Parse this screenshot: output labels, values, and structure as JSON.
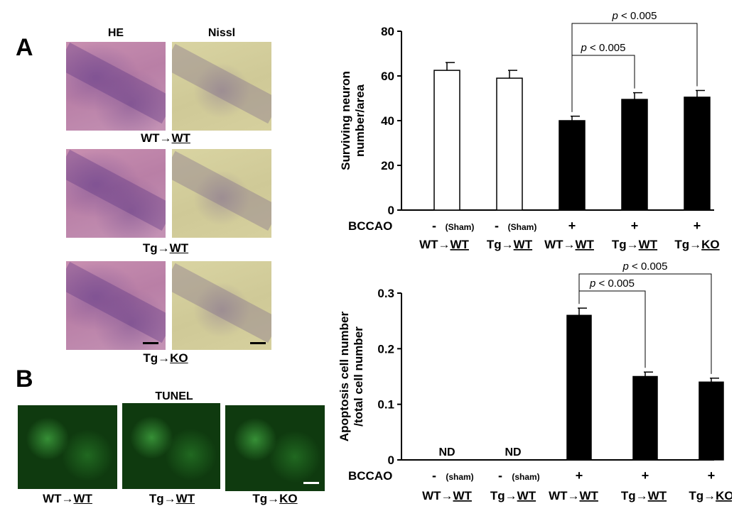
{
  "panel_a": {
    "letter": "A",
    "col_he": "HE",
    "col_nissl": "Nissl",
    "rows": [
      {
        "pre": "WT→",
        "under": "WT"
      },
      {
        "pre": "Tg→",
        "under": "WT"
      },
      {
        "pre": "Tg→",
        "under": "KO"
      }
    ]
  },
  "panel_b": {
    "letter": "B",
    "title": "TUNEL",
    "labels": [
      {
        "pre": "WT→",
        "under": "WT"
      },
      {
        "pre": "Tg→",
        "under": "WT"
      },
      {
        "pre": "Tg→",
        "under": "KO"
      }
    ]
  },
  "chart_data": [
    {
      "type": "bar",
      "ylabel_line1": "Surviving neuron",
      "ylabel_line2": "number/area",
      "ylim": [
        0,
        80
      ],
      "yticks": [
        "0",
        "20",
        "40",
        "60",
        "80"
      ],
      "categories": [
        "WT→WT",
        "Tg→WT",
        "WT→WT",
        "Tg→WT",
        "Tg→KO"
      ],
      "values": [
        62.5,
        59,
        40,
        49.5,
        50.5
      ],
      "errors": [
        3.5,
        3.5,
        2,
        3,
        3
      ],
      "fills": [
        "white",
        "white",
        "black",
        "black",
        "black"
      ],
      "bccao_label": "BCCAO",
      "bccao": [
        "-",
        "-",
        "+",
        "+",
        "+"
      ],
      "sham": [
        "(Sham)",
        "(Sham)",
        "",
        "",
        ""
      ],
      "labels": [
        {
          "pre": "WT→",
          "under": "WT"
        },
        {
          "pre": "Tg→",
          "under": "WT"
        },
        {
          "pre": "WT→",
          "under": "WT"
        },
        {
          "pre": "Tg→",
          "under": "WT"
        },
        {
          "pre": "Tg→",
          "under": "KO"
        }
      ],
      "sig": [
        {
          "from": 2,
          "to": 3,
          "p_italic": "p",
          "text": " < 0.005"
        },
        {
          "from": 2,
          "to": 4,
          "p_italic": "p",
          "text": " < 0.005"
        }
      ]
    },
    {
      "type": "bar",
      "ylabel_line1": "Apoptosis cell number",
      "ylabel_line2": "/total cell number",
      "ylim": [
        0,
        0.3
      ],
      "yticks": [
        "0",
        "0.1",
        "0.2",
        "0.3"
      ],
      "categories": [
        "WT→WT",
        "Tg→WT",
        "WT→WT",
        "Tg→WT",
        "Tg→KO"
      ],
      "values": [
        null,
        null,
        0.26,
        0.15,
        0.14
      ],
      "errors": [
        0,
        0,
        0.013,
        0.008,
        0.007
      ],
      "nd": [
        "ND",
        "ND",
        "",
        "",
        ""
      ],
      "bccao_label": "BCCAO",
      "bccao": [
        "-",
        "-",
        "+",
        "+",
        "+"
      ],
      "sham": [
        "(sham)",
        "(sham)",
        "",
        "",
        ""
      ],
      "labels": [
        {
          "pre": "WT→",
          "under": "WT"
        },
        {
          "pre": "Tg→",
          "under": "WT"
        },
        {
          "pre": "WT→",
          "under": "WT"
        },
        {
          "pre": "Tg→",
          "under": "WT"
        },
        {
          "pre": "Tg→",
          "under": "KO"
        }
      ],
      "sig": [
        {
          "from": 2,
          "to": 3,
          "p_italic": "p",
          "text": " < 0.005"
        },
        {
          "from": 2,
          "to": 4,
          "p_italic": "p",
          "text": " < 0.005"
        }
      ]
    }
  ]
}
